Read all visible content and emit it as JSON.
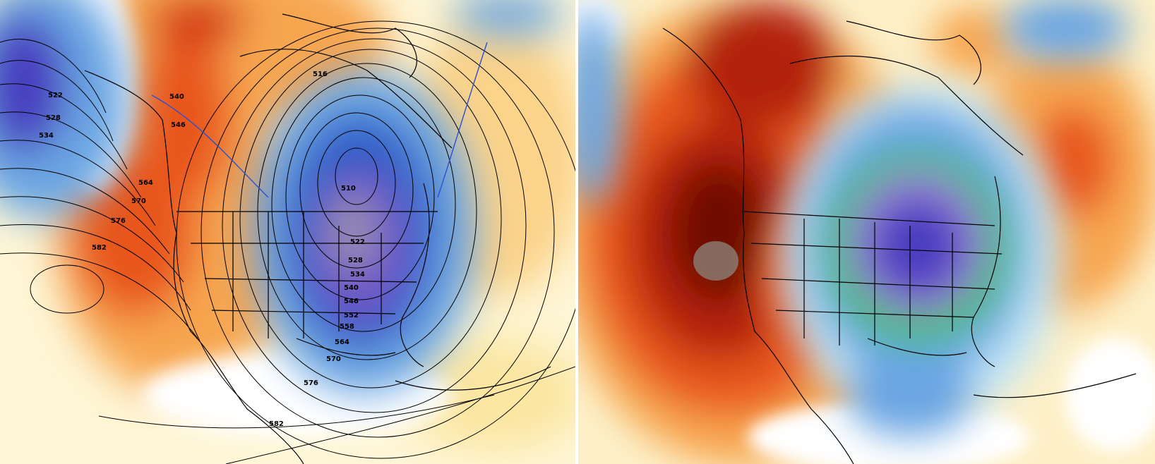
{
  "left_map": {
    "contour_labels": [
      "522",
      "528",
      "534",
      "540",
      "546",
      "564",
      "570",
      "576",
      "582",
      "510",
      "516",
      "522",
      "528",
      "534",
      "540",
      "546",
      "552",
      "558",
      "564",
      "570",
      "576",
      "582"
    ]
  },
  "colors": {
    "warm_light": "#fde9a8",
    "warm_mid": "#f7a650",
    "warm_strong": "#e8561e",
    "warm_deep": "#b3200b",
    "warm_darkest": "#6e0e05",
    "cold_light": "#bfe4f7",
    "cold_mid": "#6aa6e3",
    "cold_strong": "#2f5fc8",
    "cold_deep": "#4a3ec0",
    "cold_purple": "#9a7fd8",
    "green": "#2fc424",
    "grey_core": "#8a8a8a"
  }
}
